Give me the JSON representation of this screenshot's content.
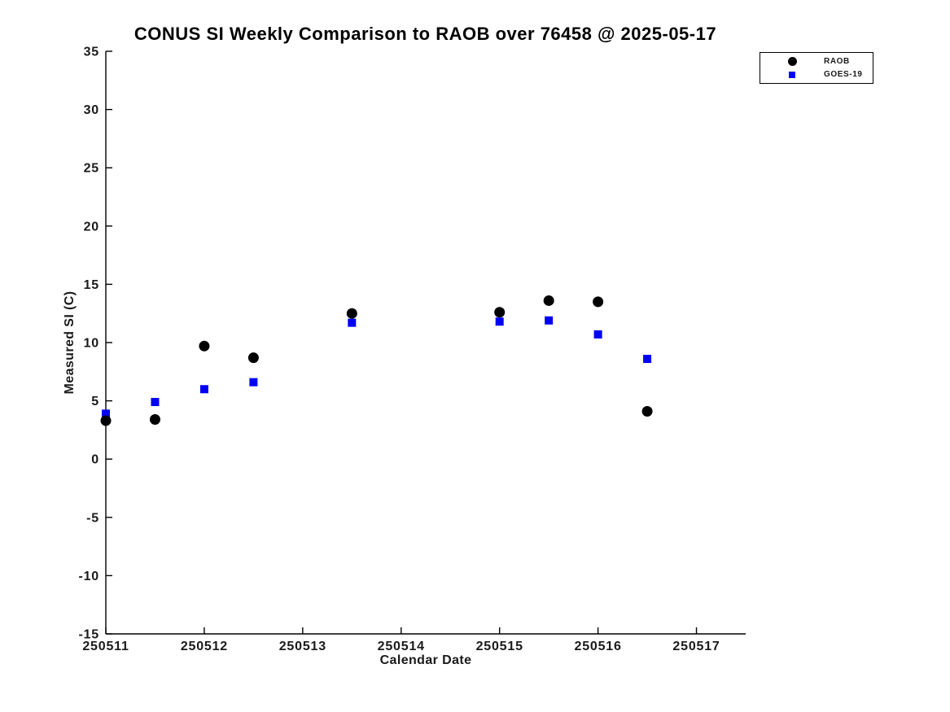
{
  "chart_data": {
    "type": "scatter",
    "title": "CONUS SI Weekly Comparison to RAOB over 76458 @ 2025-05-17",
    "xlabel": "Calendar Date",
    "ylabel": "Measured SI (C)",
    "xlim": [
      250511,
      250517.5
    ],
    "ylim": [
      -15,
      35
    ],
    "xticks": [
      250511,
      250512,
      250513,
      250514,
      250515,
      250516,
      250517
    ],
    "yticks": [
      35,
      30,
      25,
      20,
      15,
      10,
      5,
      0,
      -5,
      -10,
      -15
    ],
    "grid": false,
    "legend_position": "top-right-outside",
    "x": [
      250511.0,
      250511.5,
      250512.0,
      250512.5,
      250513.5,
      250515.0,
      250515.5,
      250516.0,
      250516.5
    ],
    "series": [
      {
        "name": "RAOB",
        "marker": "circle",
        "color": "#000000",
        "values": [
          3.3,
          3.4,
          9.7,
          8.7,
          12.5,
          12.6,
          13.6,
          13.5,
          4.1
        ]
      },
      {
        "name": "GOES-19",
        "marker": "square",
        "color": "#0000f5",
        "values": [
          3.9,
          4.9,
          6.0,
          6.6,
          11.7,
          11.8,
          11.9,
          10.7,
          8.6
        ]
      }
    ]
  }
}
